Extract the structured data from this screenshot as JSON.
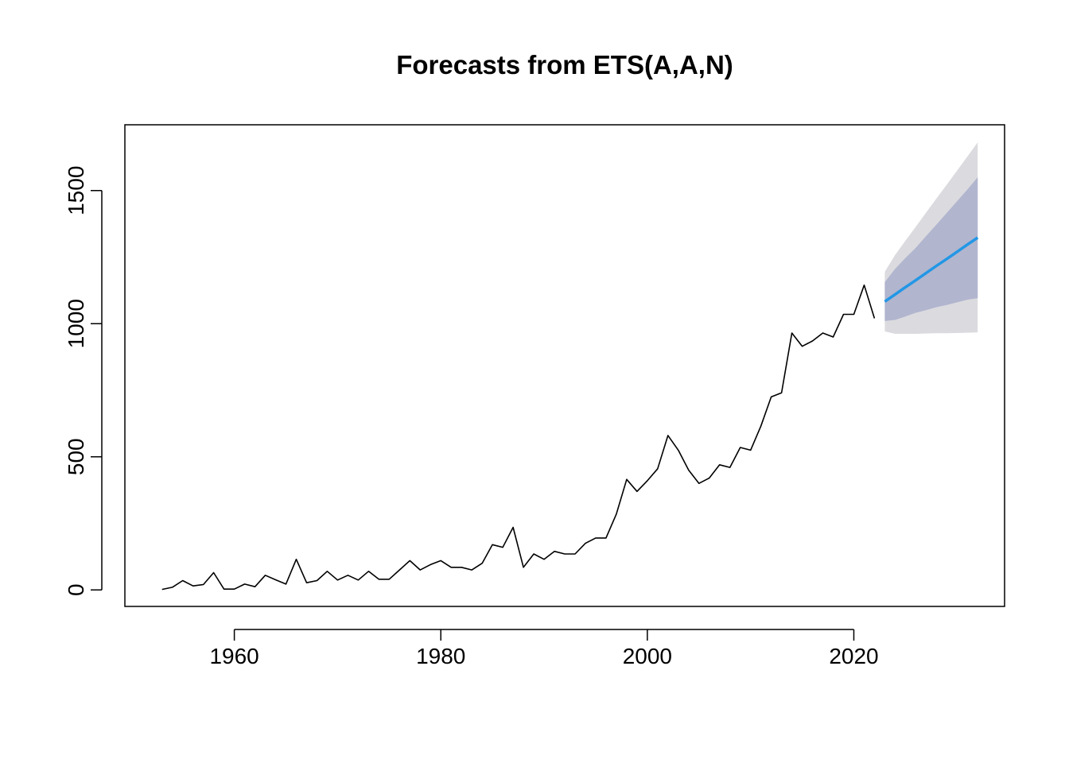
{
  "chart_data": {
    "type": "line",
    "title": "Forecasts from ETS(A,A,N)",
    "xlabel": "",
    "ylabel": "",
    "xlim": [
      1949.4,
      2034.6
    ],
    "ylim": [
      -62,
      1747
    ],
    "x_ticks": [
      1960,
      1980,
      2000,
      2020
    ],
    "y_ticks": [
      0,
      500,
      1000,
      1500
    ],
    "grid": false,
    "legend": "none",
    "colors": {
      "observed": "#000000",
      "forecast": "#2297E6",
      "band95": "#DBDBDF",
      "band80": "#B1B5CE"
    },
    "series": [
      {
        "x": [
          1953,
          1954,
          1955,
          1956,
          1957,
          1958,
          1959,
          1960,
          1961,
          1962,
          1963,
          1964,
          1965,
          1966,
          1967,
          1968,
          1969,
          1970,
          1971,
          1972,
          1973,
          1974,
          1975,
          1976,
          1977,
          1978,
          1979,
          1980,
          1981,
          1982,
          1983,
          1984,
          1985,
          1986,
          1987,
          1988,
          1989,
          1990,
          1991,
          1992,
          1993,
          1994,
          1995,
          1996,
          1997,
          1998,
          1999,
          2000,
          2001,
          2002,
          2003,
          2004,
          2005,
          2006,
          2007,
          2008,
          2009,
          2010,
          2011,
          2012,
          2013,
          2014,
          2015,
          2016,
          2017,
          2018,
          2019,
          2020,
          2021,
          2022
        ],
        "values": [
          2,
          10,
          35,
          15,
          20,
          65,
          3,
          3,
          22,
          12,
          55,
          38,
          22,
          115,
          27,
          35,
          70,
          37,
          55,
          37,
          70,
          40,
          40,
          75,
          110,
          75,
          95,
          110,
          85,
          85,
          75,
          100,
          170,
          160,
          235,
          85,
          135,
          115,
          145,
          135,
          135,
          175,
          195,
          195,
          285,
          415,
          370,
          410,
          455,
          580,
          525,
          450,
          400,
          420,
          470,
          460,
          535,
          525,
          615,
          725,
          740,
          965,
          915,
          935,
          965,
          950,
          1035,
          1035,
          1145,
          1020
        ]
      },
      {
        "x": [
          2023,
          2024,
          2025,
          2026,
          2027,
          2028,
          2029,
          2030,
          2031,
          2032
        ],
        "values": [
          1083,
          1110,
          1137,
          1163,
          1190,
          1217,
          1243,
          1270,
          1297,
          1323
        ]
      }
    ],
    "bands": [
      {
        "level": 95,
        "x": [
          2023,
          2024,
          2025,
          2026,
          2027,
          2028,
          2029,
          2030,
          2031,
          2032
        ],
        "lower": [
          971,
          962,
          962,
          962,
          963,
          964,
          964,
          965,
          966,
          967
        ],
        "upper": [
          1195,
          1258,
          1312,
          1364,
          1417,
          1470,
          1522,
          1575,
          1628,
          1681
        ]
      },
      {
        "level": 80,
        "x": [
          2023,
          2024,
          2025,
          2026,
          2027,
          2028,
          2029,
          2030,
          2031,
          2032
        ],
        "lower": [
          1010,
          1014,
          1027,
          1041,
          1051,
          1062,
          1070,
          1080,
          1090,
          1096
        ],
        "upper": [
          1156,
          1206,
          1247,
          1285,
          1329,
          1372,
          1416,
          1460,
          1504,
          1550
        ]
      }
    ]
  }
}
